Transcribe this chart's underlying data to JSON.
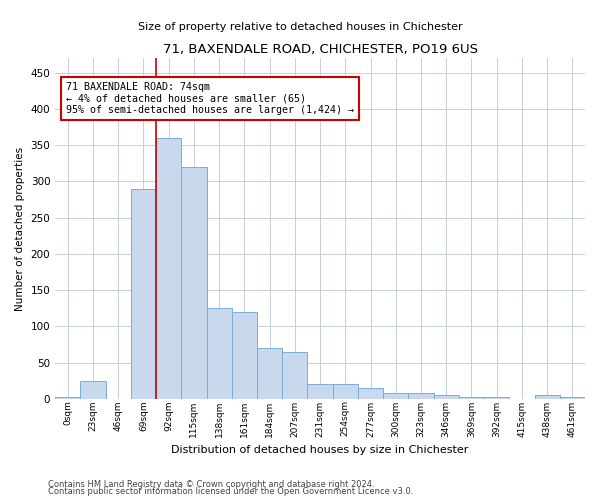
{
  "title1": "71, BAXENDALE ROAD, CHICHESTER, PO19 6US",
  "title2": "Size of property relative to detached houses in Chichester",
  "xlabel": "Distribution of detached houses by size in Chichester",
  "ylabel": "Number of detached properties",
  "bin_labels": [
    "0sqm",
    "23sqm",
    "46sqm",
    "69sqm",
    "92sqm",
    "115sqm",
    "138sqm",
    "161sqm",
    "184sqm",
    "207sqm",
    "231sqm",
    "254sqm",
    "277sqm",
    "300sqm",
    "323sqm",
    "346sqm",
    "369sqm",
    "392sqm",
    "415sqm",
    "438sqm",
    "461sqm"
  ],
  "bar_values": [
    3,
    25,
    0,
    290,
    360,
    320,
    125,
    120,
    70,
    65,
    20,
    20,
    15,
    8,
    8,
    5,
    3,
    3,
    0,
    5,
    3
  ],
  "bar_color": "#c8d9ee",
  "bar_edge_color": "#7bacd4",
  "vline_color": "#cc0000",
  "vline_pos": 3.5,
  "annotation_text": "71 BAXENDALE ROAD: 74sqm\n← 4% of detached houses are smaller (65)\n95% of semi-detached houses are larger (1,424) →",
  "annotation_box_color": "#ffffff",
  "annotation_box_edge": "#cc0000",
  "ylim": [
    0,
    470
  ],
  "yticks": [
    0,
    50,
    100,
    150,
    200,
    250,
    300,
    350,
    400,
    450
  ],
  "footer1": "Contains HM Land Registry data © Crown copyright and database right 2024.",
  "footer2": "Contains public sector information licensed under the Open Government Licence v3.0.",
  "bg_color": "#ffffff",
  "grid_color": "#c5cfe0"
}
